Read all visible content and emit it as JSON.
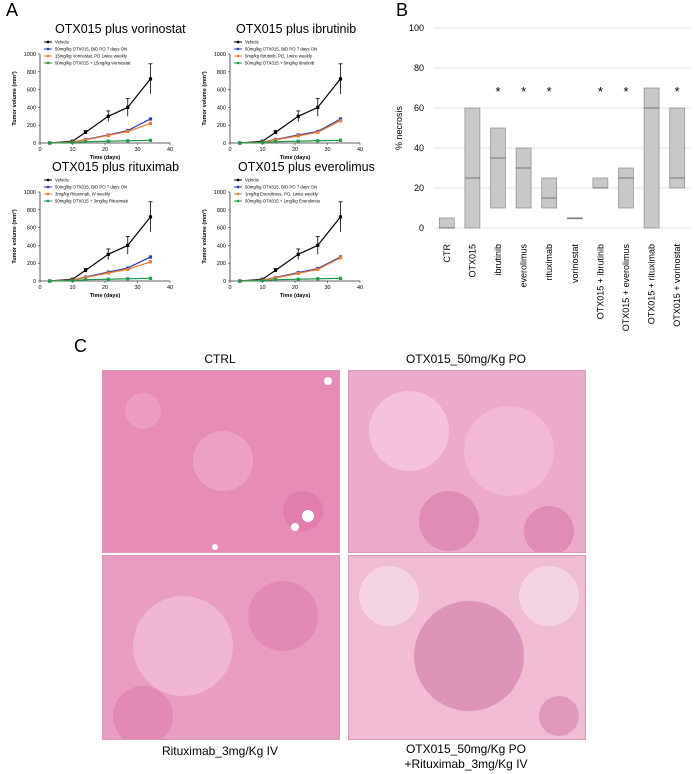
{
  "panels": {
    "a": "A",
    "b": "B",
    "c": "C"
  },
  "growth_charts": [
    {
      "title": "OTX015 plus vorinostat"
    },
    {
      "title": "OTX015 plus ibrutinib"
    },
    {
      "title": "OTX015 plus rituximab"
    },
    {
      "title": "OTX015 plus everolimus"
    }
  ],
  "micrographs": {
    "ctrl": "CTRL",
    "otx": "OTX015_50mg/Kg PO",
    "ritux": "Rituximab_3mg/Kg IV",
    "combo_line1": "OTX015_50mg/Kg PO",
    "combo_line2": "+Rituximab_3mg/Kg IV"
  },
  "colors": {
    "vehicle": "#000000",
    "otx015": "#2a3fa8",
    "single": "#f07a30",
    "combo": "#1f9a4a",
    "box": "#c8c8c8",
    "tissue": "#e89ac0"
  },
  "chart_data": [
    {
      "type": "line",
      "title": "OTX015 plus vorinostat",
      "xlabel": "Time (days)",
      "ylabel": "Tumor volume (mm³)",
      "xlim": [
        0,
        40
      ],
      "ylim": [
        0,
        1000
      ],
      "xticks": [
        0,
        10,
        20,
        30,
        40
      ],
      "yticks": [
        0,
        200,
        400,
        600,
        800,
        1000
      ],
      "x": [
        3,
        10,
        14,
        21,
        27,
        34
      ],
      "series": [
        {
          "name": "Vehicle",
          "color": "#000000",
          "values": [
            0,
            20,
            120,
            300,
            400,
            720
          ],
          "err": [
            0,
            8,
            20,
            60,
            100,
            170
          ]
        },
        {
          "name": "50mg/kg OTX015, BID PO 7 days ON",
          "color": "#2a3fa8",
          "values": [
            0,
            10,
            40,
            90,
            140,
            270
          ],
          "err": [
            0,
            0,
            0,
            0,
            0,
            0
          ]
        },
        {
          "name": "15mg/kg Vorinostat, PO 1wice weekly",
          "color": "#f07a30",
          "values": [
            0,
            10,
            35,
            85,
            130,
            220
          ],
          "err": [
            0,
            0,
            0,
            0,
            0,
            0
          ]
        },
        {
          "name": "50mg/kg OTX015 + 15mg/kg Vorinostat",
          "color": "#1f9a4a",
          "values": [
            0,
            5,
            15,
            20,
            25,
            30
          ],
          "err": [
            0,
            0,
            0,
            0,
            0,
            0
          ]
        }
      ]
    },
    {
      "type": "line",
      "title": "OTX015 plus ibrutinib",
      "xlabel": "Time (days)",
      "ylabel": "Tumor volume (mm³)",
      "xlim": [
        0,
        40
      ],
      "ylim": [
        0,
        1000
      ],
      "xticks": [
        0,
        10,
        20,
        30,
        40
      ],
      "yticks": [
        0,
        200,
        400,
        600,
        800,
        1000
      ],
      "x": [
        3,
        10,
        14,
        21,
        27,
        34
      ],
      "series": [
        {
          "name": "Vehicle",
          "color": "#000000",
          "values": [
            0,
            20,
            120,
            300,
            400,
            720
          ],
          "err": [
            0,
            8,
            20,
            60,
            100,
            170
          ]
        },
        {
          "name": "50mg/kg OTX015, BID PO 7 days ON",
          "color": "#2a3fa8",
          "values": [
            0,
            10,
            40,
            90,
            130,
            270
          ],
          "err": [
            0,
            0,
            0,
            0,
            0,
            0
          ]
        },
        {
          "name": "5mg/kg Ibrutinib, PO, 1wice weekly",
          "color": "#f07a30",
          "values": [
            0,
            10,
            35,
            80,
            120,
            250
          ],
          "err": [
            0,
            0,
            0,
            0,
            0,
            0
          ]
        },
        {
          "name": "50mg/kg OTX015 + 5mg/kg Ibrutinib",
          "color": "#1f9a4a",
          "values": [
            0,
            5,
            15,
            20,
            25,
            30
          ],
          "err": [
            0,
            0,
            0,
            0,
            0,
            0
          ]
        }
      ]
    },
    {
      "type": "line",
      "title": "OTX015 plus rituximab",
      "xlabel": "Time (days)",
      "ylabel": "Tumor volume (mm³)",
      "xlim": [
        0,
        40
      ],
      "ylim": [
        0,
        1000
      ],
      "xticks": [
        0,
        10,
        20,
        30,
        40
      ],
      "yticks": [
        0,
        200,
        400,
        600,
        800,
        1000
      ],
      "x": [
        3,
        10,
        14,
        21,
        27,
        34
      ],
      "series": [
        {
          "name": "Vehicle",
          "color": "#000000",
          "values": [
            0,
            20,
            120,
            300,
            400,
            720
          ],
          "err": [
            0,
            8,
            20,
            60,
            100,
            170
          ]
        },
        {
          "name": "50mg/kg OTX015, BID PO 7 days ON",
          "color": "#2a3fa8",
          "values": [
            0,
            10,
            45,
            100,
            145,
            270
          ],
          "err": [
            0,
            0,
            0,
            0,
            0,
            0
          ]
        },
        {
          "name": "3mg/kg Rituximab, IV weekly",
          "color": "#f07a30",
          "values": [
            0,
            10,
            40,
            90,
            130,
            215
          ],
          "err": [
            0,
            0,
            0,
            0,
            0,
            0
          ]
        },
        {
          "name": "50mg/kg OTX015 + 3mg/kg Rituximab",
          "color": "#1f9a4a",
          "values": [
            0,
            5,
            15,
            20,
            25,
            30
          ],
          "err": [
            0,
            0,
            0,
            0,
            0,
            0
          ]
        }
      ]
    },
    {
      "type": "line",
      "title": "OTX015 plus everolimus",
      "xlabel": "Time (days)",
      "ylabel": "Tumor volume (mm³)",
      "xlim": [
        0,
        40
      ],
      "ylim": [
        0,
        1000
      ],
      "xticks": [
        0,
        10,
        20,
        30,
        40
      ],
      "yticks": [
        0,
        200,
        400,
        600,
        800,
        1000
      ],
      "x": [
        3,
        10,
        14,
        21,
        27,
        34
      ],
      "series": [
        {
          "name": "Vehicle",
          "color": "#000000",
          "values": [
            0,
            20,
            120,
            300,
            400,
            720
          ],
          "err": [
            0,
            8,
            20,
            60,
            100,
            170
          ]
        },
        {
          "name": "50mg/kg OTX015, BID PO 7 days ON",
          "color": "#2a3fa8",
          "values": [
            0,
            10,
            40,
            95,
            140,
            270
          ],
          "err": [
            0,
            0,
            0,
            0,
            0,
            0
          ]
        },
        {
          "name": "1mg/kg Everolimus, PO, 1wice weekly",
          "color": "#f07a30",
          "values": [
            0,
            10,
            35,
            85,
            130,
            260
          ],
          "err": [
            0,
            0,
            0,
            0,
            0,
            0
          ]
        },
        {
          "name": "50mg/kg OTX015 + 1mg/kg Everolimus",
          "color": "#1f9a4a",
          "values": [
            0,
            5,
            15,
            20,
            25,
            30
          ],
          "err": [
            0,
            0,
            0,
            0,
            0,
            0
          ]
        }
      ]
    },
    {
      "type": "box",
      "ylabel": "% necrosis",
      "ylim": [
        0,
        100
      ],
      "yticks": [
        0,
        20,
        40,
        60,
        80,
        100
      ],
      "grid": true,
      "categories": [
        "CTR",
        "OTX015",
        "ibrutinib",
        "everolimus",
        "rituximab",
        "vorinostat",
        "OTX015 + ibrutinib",
        "OTX015 + everolimus",
        "OTX015 + rituximab",
        "OTX015 + vorinostat"
      ],
      "boxes": [
        {
          "q1": 0,
          "median": 0,
          "q3": 5,
          "star": false
        },
        {
          "q1": 0,
          "median": 25,
          "q3": 60,
          "star": false
        },
        {
          "q1": 10,
          "median": 35,
          "q3": 50,
          "star": true
        },
        {
          "q1": 10,
          "median": 30,
          "q3": 40,
          "star": true
        },
        {
          "q1": 10,
          "median": 15,
          "q3": 25,
          "star": true
        },
        {
          "q1": 5,
          "median": 5,
          "q3": 5,
          "star": false
        },
        {
          "q1": 20,
          "median": 20,
          "q3": 25,
          "star": true
        },
        {
          "q1": 10,
          "median": 25,
          "q3": 30,
          "star": true
        },
        {
          "q1": 0,
          "median": 60,
          "q3": 70,
          "star": false
        },
        {
          "q1": 20,
          "median": 25,
          "q3": 60,
          "star": true
        }
      ],
      "star_symbol": "*"
    }
  ]
}
